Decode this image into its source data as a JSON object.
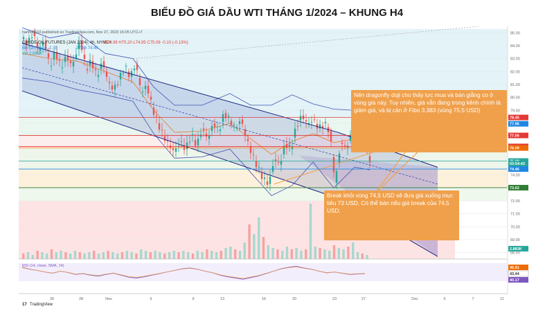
{
  "title": "BIỂU ĐỒ GIÁ DẦU WTI THÁNG 1/2024 – KHUNG H4",
  "publish_line": "hanhd8510 published on TradingView.com, Nov 27, 2023 15:05 UTC+7",
  "legend": {
    "symbol_line": "CRUDE OIL FUTURES (JAN 2024), 4h, NYMEX",
    "ohlc": "O74.98 H75.20 L74.95 C75.08 -0.10 (-0.13%)",
    "bb_line": "BB (20, close, 2, 0)",
    "bb_values": "77.86 74.46",
    "vol_line": "Vol 2.883K"
  },
  "rsi_label": "RSI (14, close, SMA, 14)",
  "price_axis": {
    "ticks": [
      "85.00",
      "84.00",
      "83.00",
      "82.00",
      "81.00",
      "80.00",
      "79.00",
      "77.00",
      "76.00",
      "74.00",
      "73.00",
      "72.00",
      "71.00",
      "70.00",
      "69.00",
      "68.00"
    ],
    "badges": [
      {
        "text": "78.45",
        "value": 78.45,
        "color": "#e53935"
      },
      {
        "text": "77.96",
        "value": 77.96,
        "color": "#1e88e5"
      },
      {
        "text": "77.06",
        "value": 77.06,
        "color": "#e53935"
      },
      {
        "text": "76.21",
        "value": 76.21,
        "color": "#e53935"
      },
      {
        "text": "76.09",
        "value": 76.09,
        "color": "#ef6c00"
      },
      {
        "text": "75.08",
        "value": 75.08,
        "color": "#26a69a"
      },
      {
        "text": "03:54:42",
        "value": 74.88,
        "color": "#26a69a"
      },
      {
        "text": "74.57",
        "value": 74.57,
        "color": "#26a69a"
      },
      {
        "text": "74.46",
        "value": 74.46,
        "color": "#1e88e5"
      },
      {
        "text": "73.02",
        "value": 73.02,
        "color": "#2e7d32"
      },
      {
        "text": "2.883K",
        "value": 68.3,
        "color": "#26a69a"
      }
    ]
  },
  "rsi_axis": {
    "badges": [
      {
        "text": "45.91",
        "color": "#ef6c00"
      },
      {
        "text": "43.44",
        "color": "#ffffff"
      },
      {
        "text": "40.17",
        "color": "#7e57c2"
      }
    ]
  },
  "time_axis": [
    "26",
    "28",
    "Nov",
    "6",
    "9",
    "13",
    "16",
    "20",
    "23",
    "27",
    "Dec",
    "5",
    "7",
    "11"
  ],
  "annotations": {
    "dragonfly": "Nến dragonfly doji cho thấy lực mua và bán giằng co ở vùng giá này. Tuy nhiên, giá vẫn đang trong kênh chính là giảm giá, và bị cản ở Fibo 3,383 (vùng 75,5 USD)",
    "break": "Break khỏi vùng 74,5 USD sẽ đưa giá xuống mục tiêu 73 USD. Có thể bán nếu giá break của 74,5 USD."
  },
  "footer": "TradingView",
  "colors": {
    "bull": "#26a69a",
    "bear": "#ef5350",
    "channel": "#1a237e",
    "annotation_bg": "#f0a04b",
    "annotation_text": "#ffffff"
  },
  "chart_data": {
    "type": "candlestick",
    "timeframe": "4h",
    "symbol": "CRUDE OIL FUTURES (JAN 2024), NYMEX",
    "x_ticks": [
      "26",
      "28",
      "Nov",
      "6",
      "9",
      "13",
      "16",
      "20",
      "23",
      "27",
      "Dec",
      "5",
      "7",
      "11"
    ],
    "y_range": [
      67.5,
      85.5
    ],
    "path": [
      [
        0,
        84.5
      ],
      [
        4,
        84.2
      ],
      [
        8,
        85.0
      ],
      [
        12,
        83.6
      ],
      [
        16,
        84.4
      ],
      [
        20,
        82.4
      ],
      [
        24,
        83.5
      ],
      [
        28,
        82.3
      ],
      [
        32,
        83.2
      ],
      [
        36,
        82.4
      ],
      [
        42,
        84.4
      ],
      [
        46,
        82.2
      ],
      [
        50,
        82.8
      ],
      [
        54,
        81.6
      ],
      [
        58,
        82.8
      ],
      [
        62,
        81.2
      ],
      [
        66,
        80.6
      ],
      [
        70,
        81.4
      ],
      [
        74,
        82.4
      ],
      [
        78,
        81.6
      ],
      [
        82,
        82.6
      ],
      [
        86,
        80.4
      ],
      [
        90,
        80.9
      ],
      [
        94,
        79.2
      ],
      [
        98,
        78.0
      ],
      [
        102,
        77.0
      ],
      [
        106,
        76.3
      ],
      [
        110,
        75.8
      ],
      [
        114,
        76.6
      ],
      [
        118,
        76.0
      ],
      [
        122,
        77.1
      ],
      [
        126,
        76.3
      ],
      [
        130,
        77.6
      ],
      [
        134,
        76.8
      ],
      [
        138,
        78.0
      ],
      [
        142,
        77.4
      ],
      [
        146,
        78.8
      ],
      [
        150,
        78.2
      ],
      [
        154,
        77.6
      ],
      [
        158,
        78.3
      ],
      [
        162,
        76.8
      ],
      [
        166,
        75.6
      ],
      [
        170,
        74.6
      ],
      [
        174,
        73.7
      ],
      [
        178,
        73.3
      ],
      [
        182,
        75.2
      ],
      [
        186,
        74.8
      ],
      [
        190,
        76.4
      ],
      [
        194,
        76.0
      ],
      [
        198,
        77.8
      ],
      [
        202,
        78.6
      ],
      [
        206,
        77.9
      ],
      [
        210,
        78.3
      ],
      [
        214,
        77.6
      ],
      [
        218,
        78.0
      ],
      [
        222,
        77.4
      ],
      [
        226,
        73.4
      ],
      [
        230,
        76.5
      ],
      [
        234,
        76.1
      ],
      [
        238,
        77.2
      ],
      [
        242,
        76.7
      ],
      [
        246,
        77.1
      ],
      [
        248,
        76.2
      ],
      [
        251,
        75.1
      ]
    ],
    "volume": [
      4,
      5,
      3,
      6,
      5,
      4,
      7,
      5,
      6,
      5,
      4,
      6,
      5,
      4,
      5,
      6,
      4,
      5,
      6,
      5,
      4,
      5,
      6,
      5,
      4,
      7,
      6,
      5,
      6,
      5,
      4,
      5,
      6,
      5,
      6,
      5,
      4,
      6,
      5,
      7,
      6,
      5,
      6,
      8,
      9,
      7,
      6,
      12,
      25,
      18,
      30,
      16,
      10,
      8,
      7,
      6,
      9,
      7,
      8,
      6,
      7,
      40,
      9,
      8,
      7,
      6,
      10,
      8,
      7,
      9,
      12,
      5,
      4,
      3
    ],
    "rsi": [
      60,
      55,
      52,
      48,
      45,
      50,
      47,
      42,
      44,
      40,
      38,
      42,
      45,
      40,
      35,
      33,
      36,
      40,
      44,
      48,
      52,
      56,
      58,
      55,
      50,
      46,
      40,
      36,
      33,
      30,
      34,
      38,
      44,
      50,
      56,
      60,
      62,
      58,
      55,
      50,
      46,
      48,
      45,
      42,
      43,
      44
    ],
    "channel_upper": [
      [
        0,
        84.2
      ],
      [
        228,
        77.3
      ],
      [
        300,
        74.6
      ]
    ],
    "channel_lower": [
      [
        0,
        80.5
      ],
      [
        228,
        72.2
      ],
      [
        300,
        67.7
      ]
    ],
    "horizontal_levels": [
      78.45,
      77.06,
      76.21,
      76.09,
      75.08,
      74.46,
      73.02
    ]
  }
}
